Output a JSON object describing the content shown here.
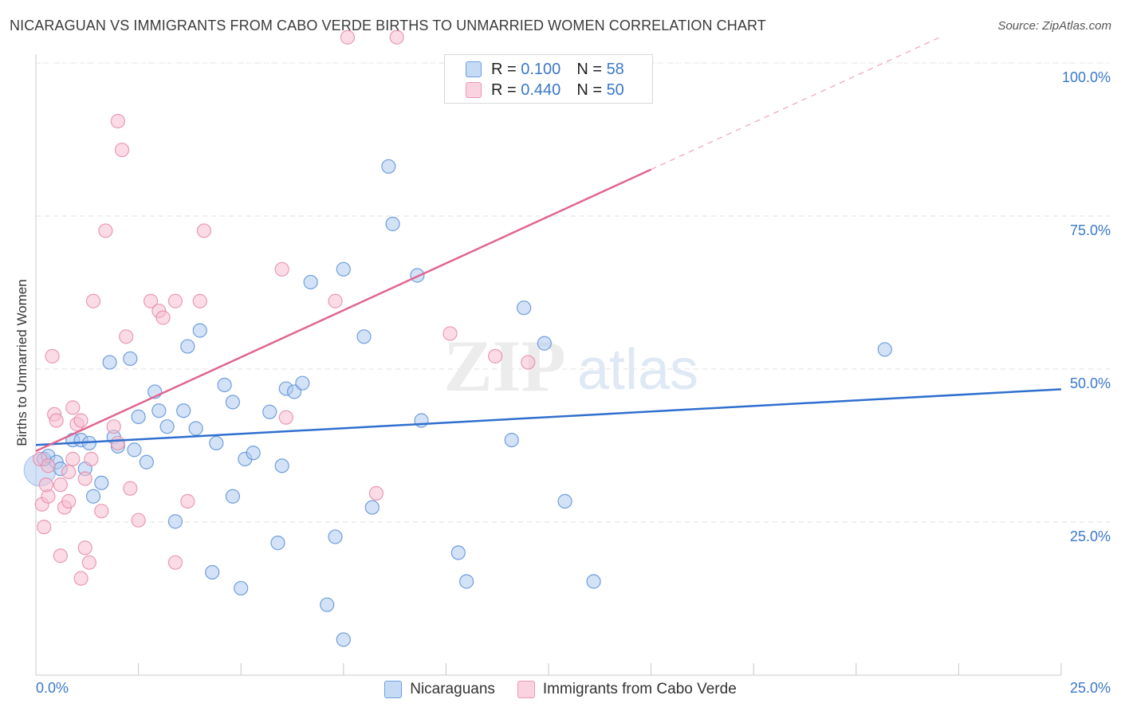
{
  "header": {
    "title": "NICARAGUAN VS IMMIGRANTS FROM CABO VERDE BIRTHS TO UNMARRIED WOMEN CORRELATION CHART",
    "source": "Source: ZipAtlas.com"
  },
  "watermark": {
    "zip": "ZIP",
    "atlas": "atlas"
  },
  "legend_top": {
    "rows": [
      {
        "r_label": "R =",
        "r_value": "0.100",
        "n_label": "N =",
        "n_value": "58"
      },
      {
        "r_label": "R =",
        "r_value": "0.440",
        "n_label": "N =",
        "n_value": "50"
      }
    ]
  },
  "legend_bottom": {
    "items": [
      "Nicaraguans",
      "Immigrants from Cabo Verde"
    ]
  },
  "colors": {
    "blue_fill": "#aecbf0",
    "blue_stroke": "#5b8fd6",
    "blue_line": "#2f6fce",
    "pink_fill": "#f7c0d2",
    "pink_stroke": "#e58aa8",
    "pink_line": "#e0668f",
    "tick_text": "#3b78c8",
    "grid": "#e2e2e2"
  },
  "chart_data": {
    "type": "scatter",
    "title": "NICARAGUAN VS IMMIGRANTS FROM CABO VERDE BIRTHS TO UNMARRIED WOMEN CORRELATION CHART",
    "xlabel": "",
    "ylabel": "Births to Unmarried Women",
    "xlim": [
      0,
      25
    ],
    "ylim": [
      0,
      105
    ],
    "x_tick_labels": [
      "0.0%",
      "25.0%"
    ],
    "y_ticks": [
      25,
      50,
      75,
      100
    ],
    "y_tick_labels": [
      "25.0%",
      "50.0%",
      "75.0%",
      "100.0%"
    ],
    "grid": true,
    "legend": "top-center",
    "series": [
      {
        "name": "Nicaraguans",
        "r": 0.1,
        "n": 58,
        "trend": {
          "x": [
            0,
            25
          ],
          "y": [
            37.6,
            46.7
          ],
          "dashed_to_x": null
        },
        "points": [
          [
            0.2,
            35.3
          ],
          [
            0.3,
            35.8
          ],
          [
            0.5,
            34.8
          ],
          [
            0.6,
            33.7
          ],
          [
            0.9,
            38.4
          ],
          [
            1.1,
            38.4
          ],
          [
            1.2,
            33.7
          ],
          [
            1.3,
            37.9
          ],
          [
            1.4,
            29.2
          ],
          [
            1.6,
            31.4
          ],
          [
            1.8,
            51.1
          ],
          [
            1.9,
            38.9
          ],
          [
            2.0,
            37.4
          ],
          [
            2.3,
            51.7
          ],
          [
            2.4,
            36.8
          ],
          [
            2.5,
            42.2
          ],
          [
            2.7,
            34.8
          ],
          [
            2.9,
            46.3
          ],
          [
            3.0,
            43.2
          ],
          [
            3.2,
            40.6
          ],
          [
            3.4,
            25.1
          ],
          [
            3.6,
            43.2
          ],
          [
            3.7,
            53.7
          ],
          [
            3.9,
            40.3
          ],
          [
            4.0,
            56.3
          ],
          [
            4.3,
            16.8
          ],
          [
            4.4,
            37.9
          ],
          [
            4.6,
            47.4
          ],
          [
            4.8,
            44.6
          ],
          [
            4.8,
            29.2
          ],
          [
            5.0,
            14.2
          ],
          [
            5.1,
            35.3
          ],
          [
            5.3,
            36.3
          ],
          [
            5.7,
            43.0
          ],
          [
            5.9,
            21.6
          ],
          [
            6.0,
            34.2
          ],
          [
            6.1,
            46.8
          ],
          [
            6.3,
            46.3
          ],
          [
            6.5,
            47.7
          ],
          [
            6.7,
            64.2
          ],
          [
            7.1,
            11.5
          ],
          [
            7.3,
            22.6
          ],
          [
            7.5,
            66.3
          ],
          [
            7.5,
            5.8
          ],
          [
            8.0,
            55.3
          ],
          [
            8.2,
            27.4
          ],
          [
            8.6,
            83.1
          ],
          [
            8.7,
            73.7
          ],
          [
            9.3,
            65.3
          ],
          [
            9.4,
            41.6
          ],
          [
            10.3,
            20.0
          ],
          [
            10.5,
            15.3
          ],
          [
            11.6,
            38.4
          ],
          [
            11.9,
            60.0
          ],
          [
            12.4,
            54.2
          ],
          [
            12.9,
            28.4
          ],
          [
            13.6,
            15.3
          ],
          [
            20.7,
            53.2
          ]
        ]
      },
      {
        "name": "Immigrants from Cabo Verde",
        "r": 0.44,
        "n": 50,
        "trend": {
          "x": [
            0,
            15
          ],
          "y": [
            36.6,
            82.6
          ],
          "dashed_to_x": 22.1
        },
        "points": [
          [
            0.1,
            35.3
          ],
          [
            0.15,
            27.9
          ],
          [
            0.2,
            24.2
          ],
          [
            0.3,
            34.2
          ],
          [
            0.3,
            29.2
          ],
          [
            0.4,
            52.1
          ],
          [
            0.45,
            42.6
          ],
          [
            0.5,
            41.6
          ],
          [
            0.6,
            19.5
          ],
          [
            0.6,
            31.1
          ],
          [
            0.7,
            27.4
          ],
          [
            0.8,
            33.2
          ],
          [
            0.8,
            28.4
          ],
          [
            0.9,
            43.7
          ],
          [
            0.9,
            35.3
          ],
          [
            1.0,
            41.0
          ],
          [
            1.1,
            41.6
          ],
          [
            1.1,
            15.8
          ],
          [
            1.2,
            32.1
          ],
          [
            1.2,
            20.8
          ],
          [
            1.3,
            18.4
          ],
          [
            1.35,
            35.3
          ],
          [
            1.4,
            61.1
          ],
          [
            1.6,
            26.8
          ],
          [
            1.7,
            72.6
          ],
          [
            1.9,
            40.6
          ],
          [
            2.0,
            37.9
          ],
          [
            2.0,
            90.5
          ],
          [
            2.1,
            85.8
          ],
          [
            2.2,
            55.3
          ],
          [
            2.3,
            30.5
          ],
          [
            2.5,
            25.3
          ],
          [
            2.8,
            61.1
          ],
          [
            3.0,
            59.5
          ],
          [
            3.1,
            58.4
          ],
          [
            3.4,
            61.1
          ],
          [
            3.4,
            18.4
          ],
          [
            3.7,
            28.4
          ],
          [
            4.0,
            61.1
          ],
          [
            4.1,
            72.6
          ],
          [
            6.0,
            66.3
          ],
          [
            6.1,
            42.1
          ],
          [
            7.3,
            61.1
          ],
          [
            7.6,
            104.2
          ],
          [
            8.3,
            29.7
          ],
          [
            8.8,
            104.2
          ],
          [
            10.1,
            55.8
          ],
          [
            11.2,
            52.1
          ],
          [
            12.0,
            51.1
          ],
          [
            0.25,
            31.1
          ]
        ]
      }
    ]
  }
}
